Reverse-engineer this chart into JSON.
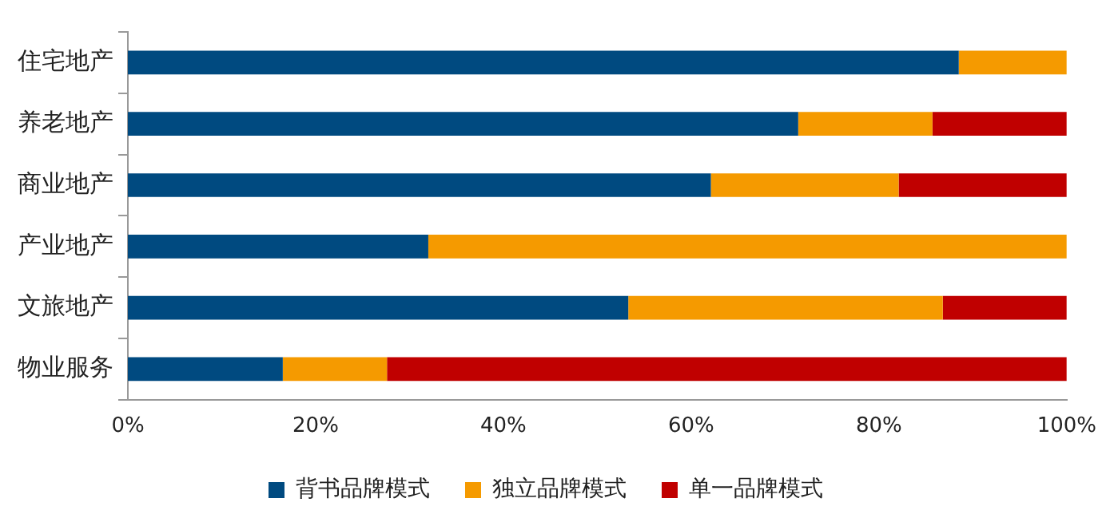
{
  "chart_data": {
    "type": "bar",
    "orientation": "horizontal",
    "stacked": true,
    "categories": [
      "住宅地产",
      "养老地产",
      "商业地产",
      "产业地产",
      "文旅地产",
      "物业服务"
    ],
    "series": [
      {
        "name": "背书品牌模式",
        "color": "#004a80",
        "values": [
          88.5,
          71.4,
          62.1,
          32.0,
          53.3,
          16.5
        ]
      },
      {
        "name": "独立品牌模式",
        "color": "#f59a00",
        "values": [
          11.5,
          14.3,
          20.0,
          68.0,
          33.5,
          11.1
        ]
      },
      {
        "name": "单一品牌模式",
        "color": "#c00000",
        "values": [
          0,
          14.3,
          17.9,
          0,
          13.2,
          72.4
        ]
      }
    ],
    "xlim": [
      0,
      100
    ],
    "xticks": [
      {
        "value": 0,
        "label": "0%"
      },
      {
        "value": 20,
        "label": "20%"
      },
      {
        "value": 40,
        "label": "40%"
      },
      {
        "value": 60,
        "label": "60%"
      },
      {
        "value": 80,
        "label": "80%"
      },
      {
        "value": 100,
        "label": "100%"
      }
    ],
    "grid": false,
    "legend": "bottom"
  }
}
